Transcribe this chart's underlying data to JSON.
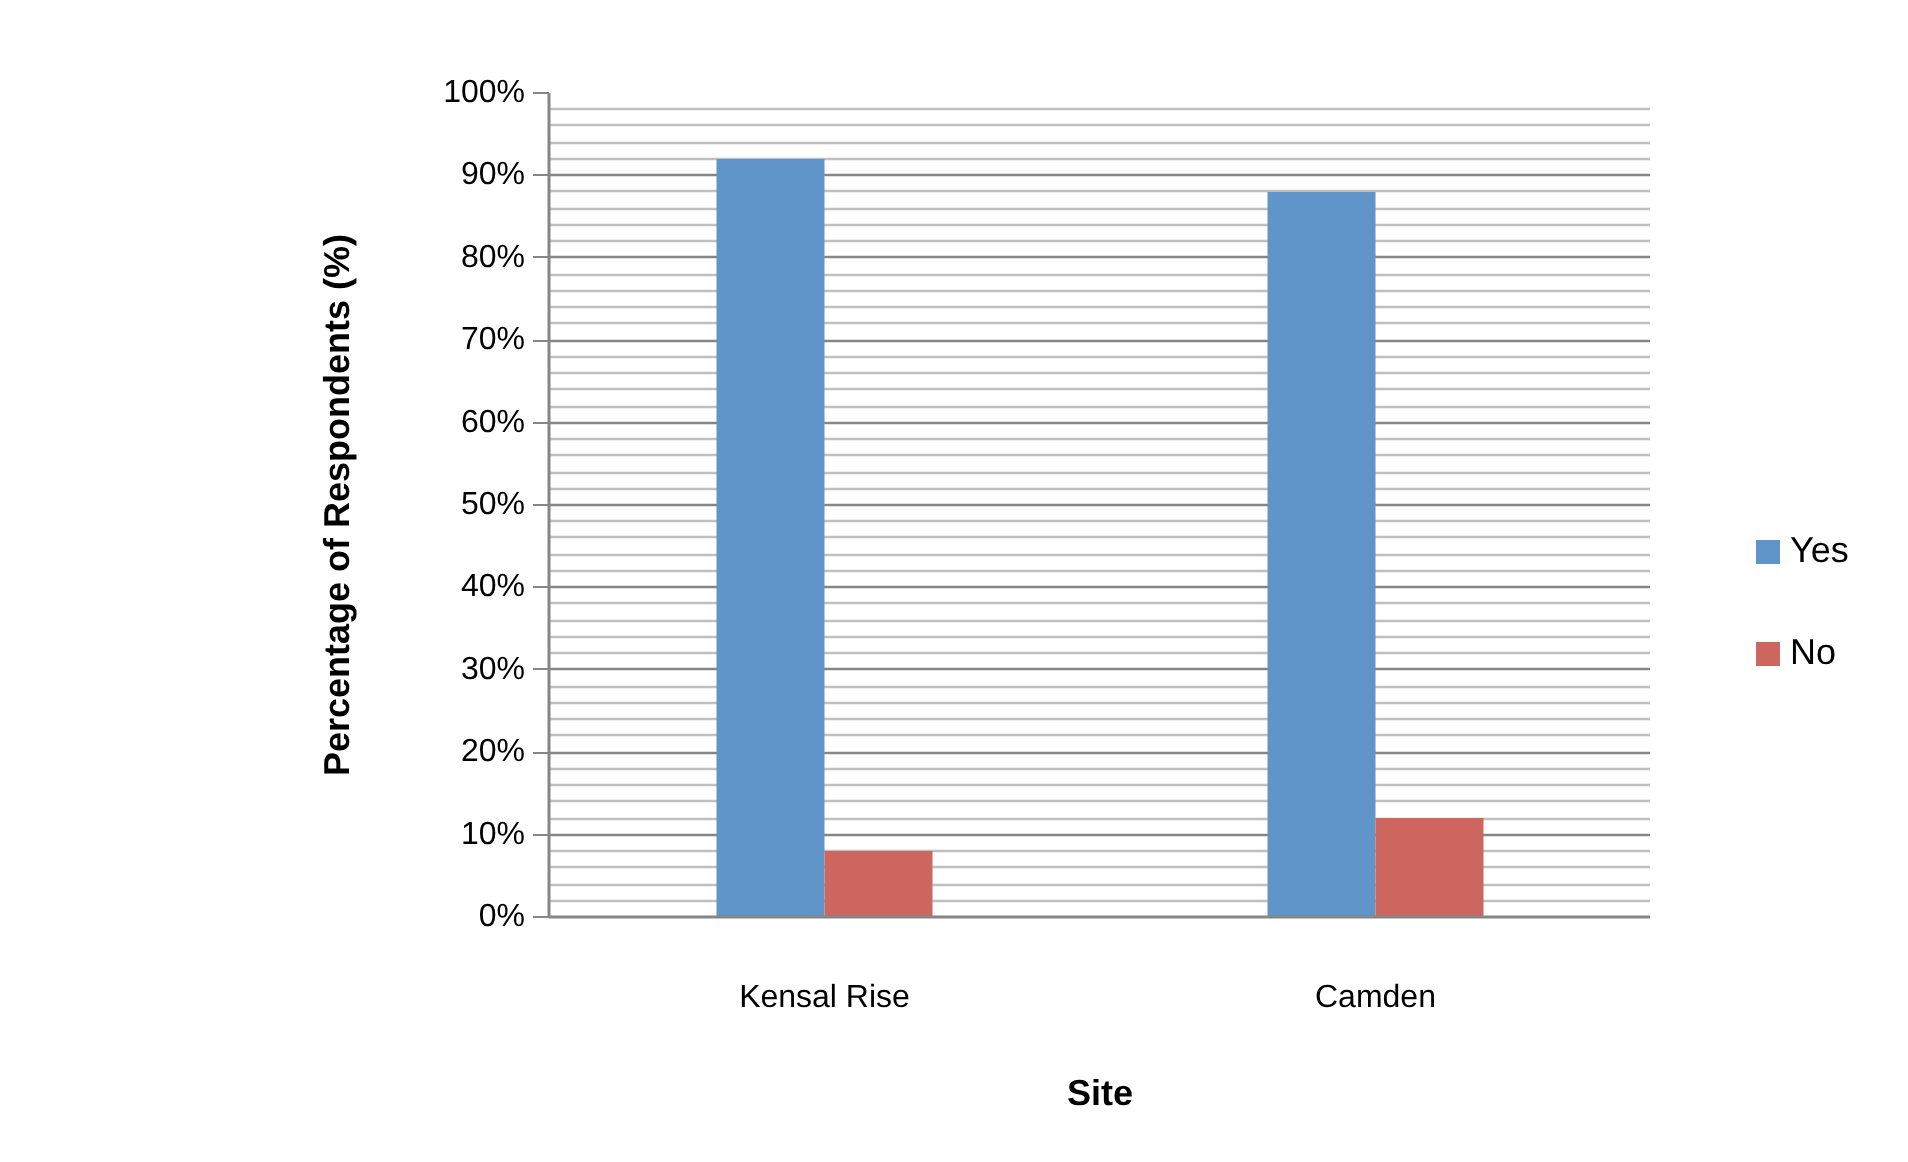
{
  "chart_data": {
    "type": "bar",
    "xlabel": "Site",
    "ylabel": "Percentage of Respondents (%)",
    "categories": [
      "Kensal Rise",
      "Camden"
    ],
    "series": [
      {
        "name": "Yes",
        "color": "#5f95c9",
        "values": [
          92,
          88
        ]
      },
      {
        "name": "No",
        "color": "#cc665e",
        "values": [
          8,
          12
        ]
      }
    ],
    "ylim": [
      0,
      100
    ],
    "yticks": [
      {
        "value": 0,
        "label": "0%"
      },
      {
        "value": 2,
        "label": null
      },
      {
        "value": 4,
        "label": null
      },
      {
        "value": 6,
        "label": null
      },
      {
        "value": 8,
        "label": null
      },
      {
        "value": 10,
        "label": "10%"
      },
      {
        "value": 12,
        "label": null
      },
      {
        "value": 14,
        "label": null
      },
      {
        "value": 16,
        "label": null
      },
      {
        "value": 18,
        "label": null
      },
      {
        "value": 20,
        "label": "20%"
      },
      {
        "value": 22,
        "label": null
      },
      {
        "value": 24,
        "label": null
      },
      {
        "value": 26,
        "label": null
      },
      {
        "value": 28,
        "label": null
      },
      {
        "value": 30,
        "label": "30%"
      },
      {
        "value": 32,
        "label": null
      },
      {
        "value": 34,
        "label": null
      },
      {
        "value": 36,
        "label": null
      },
      {
        "value": 38,
        "label": null
      },
      {
        "value": 40,
        "label": "40%"
      },
      {
        "value": 42,
        "label": null
      },
      {
        "value": 44,
        "label": null
      },
      {
        "value": 46,
        "label": null
      },
      {
        "value": 48,
        "label": null
      },
      {
        "value": 50,
        "label": "50%"
      },
      {
        "value": 52,
        "label": null
      },
      {
        "value": 54,
        "label": null
      },
      {
        "value": 56,
        "label": null
      },
      {
        "value": 58,
        "label": null
      },
      {
        "value": 60,
        "label": "60%"
      },
      {
        "value": 62,
        "label": null
      },
      {
        "value": 64,
        "label": null
      },
      {
        "value": 66,
        "label": null
      },
      {
        "value": 68,
        "label": null
      },
      {
        "value": 70,
        "label": "70%"
      },
      {
        "value": 72,
        "label": null
      },
      {
        "value": 74,
        "label": null
      },
      {
        "value": 76,
        "label": null
      },
      {
        "value": 78,
        "label": null
      },
      {
        "value": 80,
        "label": "80%"
      },
      {
        "value": 82,
        "label": null
      },
      {
        "value": 84,
        "label": null
      },
      {
        "value": 86,
        "label": null
      },
      {
        "value": 88,
        "label": null
      },
      {
        "value": 90,
        "label": "90%"
      },
      {
        "value": 92,
        "label": null
      },
      {
        "value": 94,
        "label": null
      },
      {
        "value": 96,
        "label": null
      },
      {
        "value": 98,
        "label": null
      },
      {
        "value": 100,
        "label": "100%"
      }
    ],
    "grid": "y",
    "legend": "right"
  }
}
